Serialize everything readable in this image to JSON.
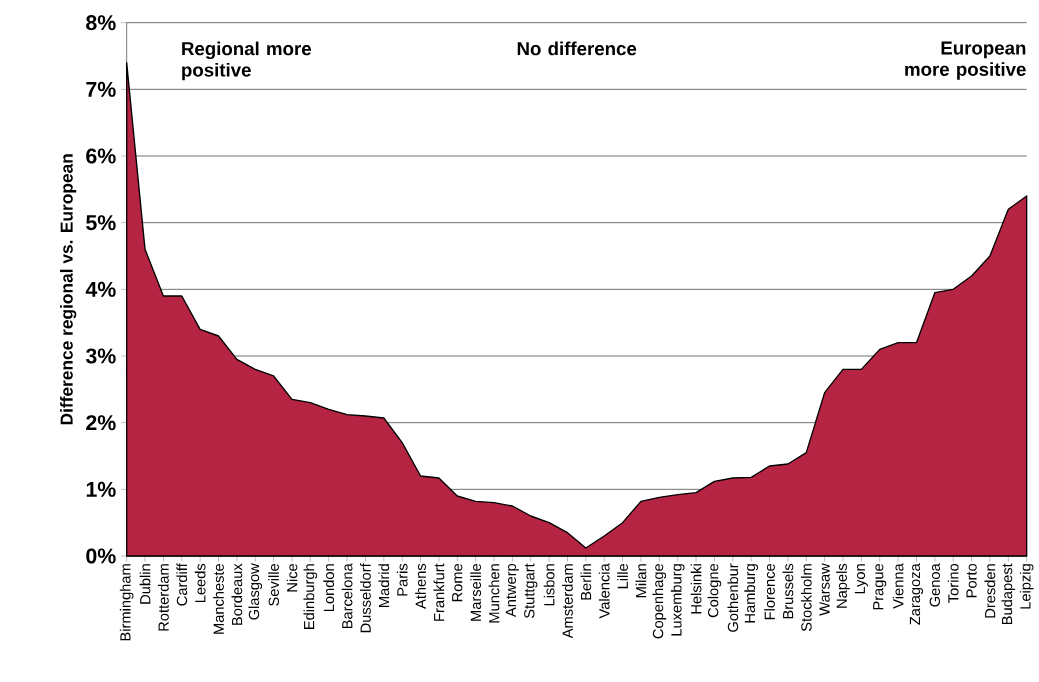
{
  "chart_data": {
    "type": "area",
    "ylabel": "Difference regional vs. European",
    "categories": [
      "Birmingham",
      "Dublin",
      "Rotterdam",
      "Cardiff",
      "Leeds",
      "Mancheste",
      "Bordeaux",
      "Glasgow",
      "Seville",
      "Nice",
      "Edinburgh",
      "London",
      "Barcelona",
      "Dusseldorf",
      "Madrid",
      "Paris",
      "Athens",
      "Frankfurt",
      "Rome",
      "Marseille",
      "Munchen",
      "Antwerp",
      "Stuttgart",
      "Lisbon",
      "Amsterdam",
      "Berlin",
      "Valencia",
      "Lille",
      "Milan",
      "Copenhage",
      "Luxemburg",
      "Helsinki",
      "Cologne",
      "Gothenbur",
      "Hamburg",
      "Florence",
      "Brussels",
      "Stockholm",
      "Warsaw",
      "Napels",
      "Lyon",
      "Prague",
      "Vienna",
      "Zaragoza",
      "Genoa",
      "Torino",
      "Porto",
      "Dresden",
      "Budapest",
      "Leipzig"
    ],
    "values": [
      7.4,
      4.6,
      3.9,
      3.9,
      3.4,
      3.3,
      2.95,
      2.8,
      2.7,
      2.35,
      2.3,
      2.2,
      2.12,
      2.1,
      2.07,
      1.7,
      1.2,
      1.17,
      0.9,
      0.82,
      0.8,
      0.75,
      0.6,
      0.5,
      0.35,
      0.12,
      0.3,
      0.5,
      0.82,
      0.88,
      0.92,
      0.95,
      1.12,
      1.17,
      1.18,
      1.35,
      1.38,
      1.55,
      2.45,
      2.8,
      2.8,
      3.1,
      3.2,
      3.2,
      3.95,
      4.0,
      4.2,
      4.5,
      5.2,
      5.4
    ],
    "color": "#b52443",
    "ylim": [
      0,
      8
    ],
    "yticks": [
      {
        "value": 0,
        "label": "0%"
      },
      {
        "value": 1,
        "label": "1%"
      },
      {
        "value": 2,
        "label": "2%"
      },
      {
        "value": 3,
        "label": "3%"
      },
      {
        "value": 4,
        "label": "4%"
      },
      {
        "value": 5,
        "label": "5%"
      },
      {
        "value": 6,
        "label": "6%"
      },
      {
        "value": 7,
        "label": "7%"
      },
      {
        "value": 8,
        "label": "8%"
      }
    ],
    "grid": "y",
    "annotations": [
      "Regional more positive",
      "No difference",
      "European more positive"
    ]
  }
}
